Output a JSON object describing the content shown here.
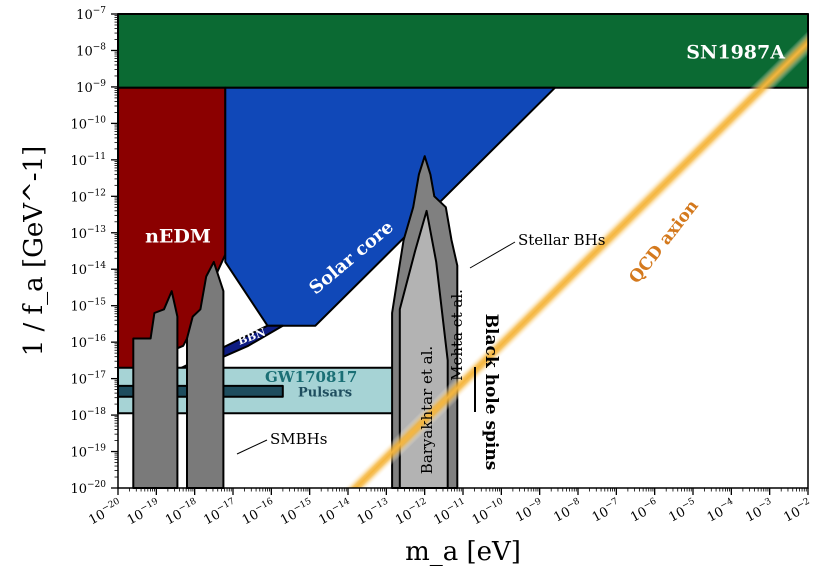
{
  "chart_data": {
    "type": "area",
    "title": "",
    "xlabel": "m_a [eV]",
    "ylabel": "1 / f_a [GeV^-1]",
    "x_log_range": [
      -20,
      -2
    ],
    "y_log_range": [
      -20,
      -7
    ],
    "xscale": "log",
    "yscale": "log",
    "grid": false,
    "x_tick_exponents": [
      -20,
      -19,
      -18,
      -17,
      -16,
      -15,
      -14,
      -13,
      -12,
      -11,
      -10,
      -9,
      -8,
      -7,
      -6,
      -5,
      -4,
      -3,
      -2
    ],
    "y_tick_exponents": [
      -20,
      -19,
      -18,
      -17,
      -16,
      -15,
      -14,
      -13,
      -12,
      -11,
      -10,
      -9,
      -8,
      -7
    ],
    "regions": [
      {
        "name": "SN1987A",
        "label": "SN1987A",
        "color": "#0b6a33",
        "label_color": "#ffffff",
        "points": [
          [
            -20,
            -7
          ],
          [
            -2,
            -7
          ],
          [
            -2,
            -9.02
          ],
          [
            -20,
            -9.02
          ]
        ]
      },
      {
        "name": "nEDM",
        "label": "nEDM",
        "color": "#8b0000",
        "label_color": "#ffffff",
        "points": [
          [
            -20,
            -9.02
          ],
          [
            -17.2,
            -9.02
          ],
          [
            -17.2,
            -13.6
          ],
          [
            -17.55,
            -14.4
          ],
          [
            -17.75,
            -15
          ],
          [
            -18.3,
            -16.1
          ],
          [
            -19.2,
            -16.5
          ],
          [
            -20,
            -17.2
          ]
        ]
      },
      {
        "name": "Solar core",
        "label": "Solar core",
        "color": "#1048b8",
        "label_color": "#ffffff",
        "points": [
          [
            -17.2,
            -9.02
          ],
          [
            -8.6,
            -9.02
          ],
          [
            -14.85,
            -15.55
          ],
          [
            -16.1,
            -15.55
          ],
          [
            -17.2,
            -13.8
          ]
        ]
      },
      {
        "name": "BBN",
        "label": "BBN",
        "color": "#0e1c82",
        "label_color": "#ffffff",
        "points": [
          [
            -19.6,
            -17.35
          ],
          [
            -16.1,
            -15.55
          ],
          [
            -15.7,
            -15.55
          ],
          [
            -16.6,
            -16.1
          ],
          [
            -19.2,
            -17.3
          ]
        ]
      },
      {
        "name": "GW170817",
        "label": "GW170817",
        "color": "#a6d3d5",
        "label_color": "#1a6f75",
        "points": [
          [
            -20,
            -16.7
          ],
          [
            -12.8,
            -16.7
          ],
          [
            -12.8,
            -17.95
          ],
          [
            -20,
            -17.95
          ]
        ]
      },
      {
        "name": "Pulsars",
        "label": "Pulsars",
        "color": "#1e4d5e",
        "label_color": "#1e4d5e",
        "points": [
          [
            -20,
            -17.2
          ],
          [
            -15.7,
            -17.2
          ],
          [
            -15.7,
            -17.5
          ],
          [
            -20,
            -17.5
          ]
        ]
      },
      {
        "name": "SMBHs",
        "label": "SMBHs",
        "color": "#7a7a7a",
        "label_color": "#000000",
        "points": [
          [
            -19.6,
            -20
          ],
          [
            -18.45,
            -20
          ],
          [
            -18.45,
            -15.3
          ],
          [
            -18.6,
            -14.6
          ],
          [
            -18.8,
            -15.1
          ],
          [
            -19.05,
            -15.2
          ],
          [
            -19.15,
            -15.9
          ],
          [
            -19.6,
            -15.9
          ]
        ],
        "points2": [
          [
            -18.2,
            -20
          ],
          [
            -17.25,
            -20
          ],
          [
            -17.25,
            -14.6
          ],
          [
            -17.5,
            -13.8
          ],
          [
            -17.7,
            -14.2
          ],
          [
            -17.85,
            -15.1
          ],
          [
            -18.05,
            -15.3
          ],
          [
            -18.2,
            -15.9
          ]
        ]
      },
      {
        "name": "Stellar BHs",
        "label": "Stellar BHs",
        "color": "#808080",
        "label_color": "#000000",
        "points": [
          [
            -12.85,
            -20
          ],
          [
            -11.15,
            -20
          ],
          [
            -11.15,
            -13.9
          ],
          [
            -11.3,
            -13.2
          ],
          [
            -11.45,
            -12.3
          ],
          [
            -11.75,
            -12.0
          ],
          [
            -11.85,
            -11.4
          ],
          [
            -12.0,
            -10.9
          ],
          [
            -12.15,
            -11.4
          ],
          [
            -12.3,
            -12.3
          ],
          [
            -12.55,
            -13.2
          ],
          [
            -12.7,
            -14.2
          ],
          [
            -12.85,
            -15.2
          ]
        ]
      },
      {
        "name": "Baryakhtar et al.",
        "label": "Baryakhtar et al.",
        "color": "#b3b3b3",
        "label_color": "#000000",
        "points": [
          [
            -12.65,
            -20
          ],
          [
            -11.4,
            -20
          ],
          [
            -11.4,
            -16.5
          ],
          [
            -11.7,
            -13.8
          ],
          [
            -11.95,
            -12.4
          ],
          [
            -12.25,
            -13.5
          ],
          [
            -12.65,
            -15.1
          ]
        ]
      }
    ],
    "lines": [
      {
        "name": "QCD axion",
        "label": "QCD axion",
        "color": "#f5b63e",
        "label_color": "#d4791d",
        "points": [
          [
            -13.8,
            -20
          ],
          [
            -2,
            -7.8
          ]
        ]
      }
    ],
    "annotations": [
      {
        "text": "Stellar BHs",
        "x": -11.0,
        "y": -13.9
      },
      {
        "text": "SMBHs",
        "x": -16.8,
        "y": -19.1
      },
      {
        "text": "Baryakhtar et al.",
        "x": -12.4,
        "y": -18.5
      },
      {
        "text": "Mehta et al.",
        "x": -11.6,
        "y": -16.6
      },
      {
        "text": "Black hole spins",
        "x": -11.2,
        "y": -16.2
      }
    ]
  }
}
